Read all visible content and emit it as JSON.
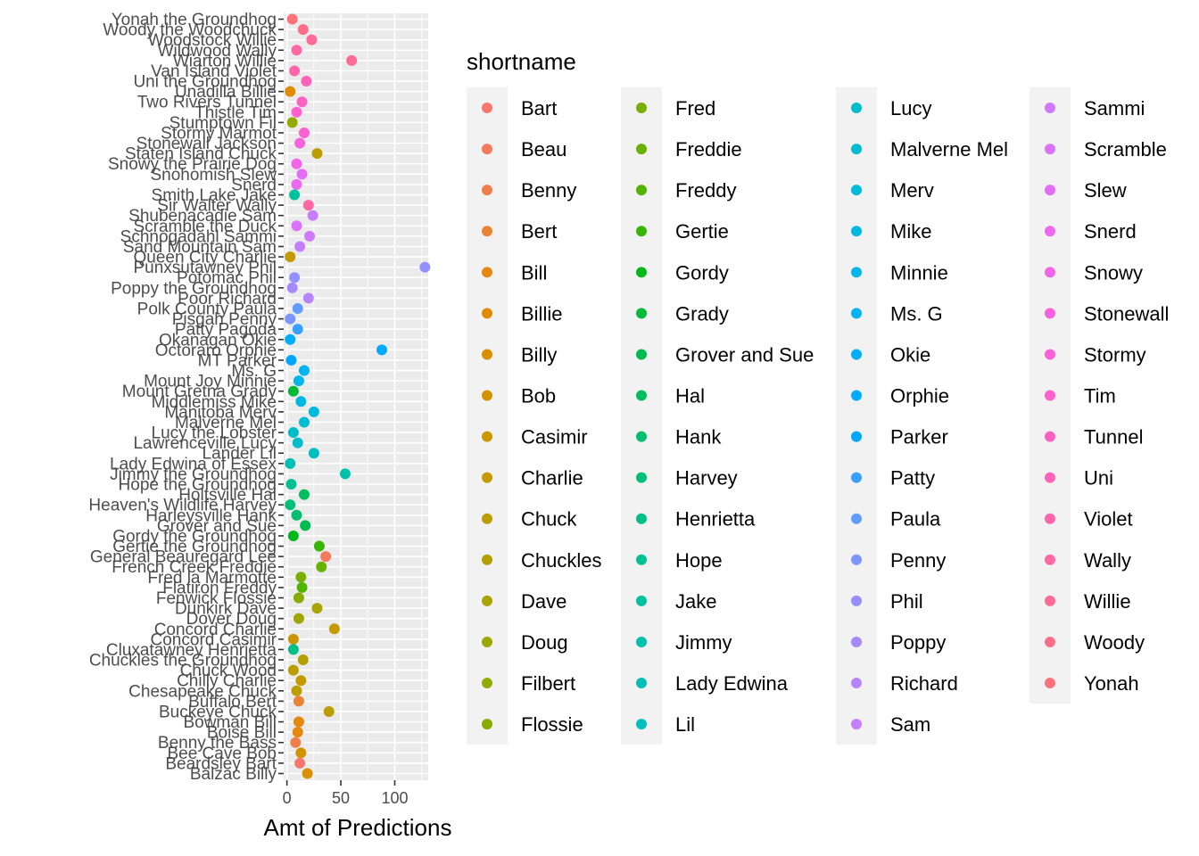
{
  "chart_data": {
    "type": "scatter",
    "xlabel": "Amt of Predictions",
    "ylabel": "",
    "xlim": [
      -3,
      131
    ],
    "x_ticks": [
      0,
      50,
      100
    ],
    "grid": true,
    "legend": {
      "title": "shortname",
      "position": "right",
      "columns": [
        [
          "Bart",
          "Beau",
          "Benny",
          "Bert",
          "Bill",
          "Billie",
          "Billy",
          "Bob",
          "Casimir",
          "Charlie",
          "Chuck",
          "Chuckles",
          "Dave",
          "Doug",
          "Filbert",
          "Flossie"
        ],
        [
          "Fred",
          "Freddie",
          "Freddy",
          "Gertie",
          "Gordy",
          "Grady",
          "Grover and Sue",
          "Hal",
          "Hank",
          "Harvey",
          "Henrietta",
          "Hope",
          "Jake",
          "Jimmy",
          "Lady Edwina",
          "Lil"
        ],
        [
          "Lucy",
          "Malverne Mel",
          "Merv",
          "Mike",
          "Minnie",
          "Ms. G",
          "Okie",
          "Orphie",
          "Parker",
          "Patty",
          "Paula",
          "Penny",
          "Phil",
          "Poppy",
          "Richard",
          "Sam"
        ],
        [
          "Sammi",
          "Scramble",
          "Slew",
          "Snerd",
          "Snowy",
          "Stonewall",
          "Stormy",
          "Tim",
          "Tunnel",
          "Uni",
          "Violet",
          "Wally",
          "Willie",
          "Woody",
          "Yonah"
        ]
      ]
    },
    "points": [
      {
        "name": "Yonah the Groundhog",
        "short": "Yonah",
        "value": 5
      },
      {
        "name": "Woody the Woodchuck",
        "short": "Woody",
        "value": 15
      },
      {
        "name": "Woodstock Willie",
        "short": "Willie",
        "value": 23
      },
      {
        "name": "Wildwood Wally",
        "short": "Wally",
        "value": 9
      },
      {
        "name": "Wiarton Willie",
        "short": "Willie",
        "value": 60
      },
      {
        "name": "Van Island Violet",
        "short": "Violet",
        "value": 7
      },
      {
        "name": "Uni the Groundhog",
        "short": "Uni",
        "value": 18
      },
      {
        "name": "Unadilla Billie",
        "short": "Billie",
        "value": 3
      },
      {
        "name": "Two Rivers Tunnel",
        "short": "Tunnel",
        "value": 14
      },
      {
        "name": "Thistle Tim",
        "short": "Tim",
        "value": 9
      },
      {
        "name": "Stumptown Fil",
        "short": "Filbert",
        "value": 5
      },
      {
        "name": "Stormy Marmot",
        "short": "Stormy",
        "value": 16
      },
      {
        "name": "Stonewall Jackson",
        "short": "Stonewall",
        "value": 12
      },
      {
        "name": "Staten Island Chuck",
        "short": "Chuck",
        "value": 28
      },
      {
        "name": "Snowy the Prairie Dog",
        "short": "Snowy",
        "value": 9
      },
      {
        "name": "Snohomish Slew",
        "short": "Slew",
        "value": 14
      },
      {
        "name": "Snerd",
        "short": "Snerd",
        "value": 9
      },
      {
        "name": "Smith Lake Jake",
        "short": "Jake",
        "value": 7
      },
      {
        "name": "Sir Walter Wally",
        "short": "Wally",
        "value": 20
      },
      {
        "name": "Shubenacadie Sam",
        "short": "Sam",
        "value": 24
      },
      {
        "name": "Scramble the Duck",
        "short": "Scramble",
        "value": 9
      },
      {
        "name": "Schnogadahl Sammi",
        "short": "Sammi",
        "value": 21
      },
      {
        "name": "Sand Mountain Sam",
        "short": "Sam",
        "value": 12
      },
      {
        "name": "Queen City Charlie",
        "short": "Charlie",
        "value": 3
      },
      {
        "name": "Punxsutawney Phil",
        "short": "Phil",
        "value": 128
      },
      {
        "name": "Potomac Phil",
        "short": "Phil",
        "value": 7
      },
      {
        "name": "Poppy the Groundhog",
        "short": "Poppy",
        "value": 5
      },
      {
        "name": "Poor Richard",
        "short": "Richard",
        "value": 20
      },
      {
        "name": "Polk County Paula",
        "short": "Paula",
        "value": 10
      },
      {
        "name": "Pisgah Penny",
        "short": "Penny",
        "value": 3
      },
      {
        "name": "Patty Pagoda",
        "short": "Patty",
        "value": 10
      },
      {
        "name": "Okanagan Okie",
        "short": "Okie",
        "value": 3
      },
      {
        "name": "Octoraro Orphie",
        "short": "Orphie",
        "value": 88
      },
      {
        "name": "MT Parker",
        "short": "Parker",
        "value": 4
      },
      {
        "name": "Ms. G",
        "short": "Ms. G",
        "value": 16
      },
      {
        "name": "Mount Joy Minnie",
        "short": "Minnie",
        "value": 11
      },
      {
        "name": "Mount Gretna Grady",
        "short": "Grady",
        "value": 6
      },
      {
        "name": "Middlemiss Mike",
        "short": "Mike",
        "value": 13
      },
      {
        "name": "Manitoba Merv",
        "short": "Merv",
        "value": 25
      },
      {
        "name": "Malverne Mel",
        "short": "Malverne Mel",
        "value": 16
      },
      {
        "name": "Lucy the Lobster",
        "short": "Lucy",
        "value": 6
      },
      {
        "name": "Lawrenceville Lucy",
        "short": "Lucy",
        "value": 10
      },
      {
        "name": "Lander Lil",
        "short": "Lil",
        "value": 25
      },
      {
        "name": "Lady Edwina of Essex",
        "short": "Lady Edwina",
        "value": 3
      },
      {
        "name": "Jimmy the Groundhog",
        "short": "Jimmy",
        "value": 54
      },
      {
        "name": "Hope the Groundhog",
        "short": "Hope",
        "value": 4
      },
      {
        "name": "Holtsville Hal",
        "short": "Hal",
        "value": 16
      },
      {
        "name": "Heaven's Wildlife Harvey",
        "short": "Harvey",
        "value": 3
      },
      {
        "name": "Harleysville Hank",
        "short": "Hank",
        "value": 9
      },
      {
        "name": "Grover and Sue",
        "short": "Grover and Sue",
        "value": 17
      },
      {
        "name": "Gordy the Groundhog",
        "short": "Gordy",
        "value": 6
      },
      {
        "name": "Gertie the Groundhog",
        "short": "Gertie",
        "value": 30
      },
      {
        "name": "General Beauregard Lee",
        "short": "Beau",
        "value": 36
      },
      {
        "name": "French Creek Freddie",
        "short": "Freddie",
        "value": 32
      },
      {
        "name": "Fred la Marmotte",
        "short": "Fred",
        "value": 13
      },
      {
        "name": "Flatiron Freddy",
        "short": "Freddy",
        "value": 14
      },
      {
        "name": "Fenwick Flossie",
        "short": "Flossie",
        "value": 11
      },
      {
        "name": "Dunkirk Dave",
        "short": "Dave",
        "value": 28
      },
      {
        "name": "Dover Doug",
        "short": "Doug",
        "value": 11
      },
      {
        "name": "Concord Charlie",
        "short": "Charlie",
        "value": 44
      },
      {
        "name": "Concord Casimir",
        "short": "Casimir",
        "value": 6
      },
      {
        "name": "Cluxatawney Henrietta",
        "short": "Henrietta",
        "value": 6
      },
      {
        "name": "Chuckles the Groundhog",
        "short": "Chuckles",
        "value": 15
      },
      {
        "name": "Chuck Wood",
        "short": "Chuck",
        "value": 6
      },
      {
        "name": "Chilly Charlie",
        "short": "Charlie",
        "value": 13
      },
      {
        "name": "Chesapeake Chuck",
        "short": "Chuck",
        "value": 9
      },
      {
        "name": "Buffalo Bert",
        "short": "Bert",
        "value": 11
      },
      {
        "name": "Buckeye Chuck",
        "short": "Chuck",
        "value": 39
      },
      {
        "name": "Bowman Bill",
        "short": "Bill",
        "value": 11
      },
      {
        "name": "Boise Bill",
        "short": "Bill",
        "value": 10
      },
      {
        "name": "Benny the Bass",
        "short": "Benny",
        "value": 8
      },
      {
        "name": "Bee Cave Bob",
        "short": "Bob",
        "value": 13
      },
      {
        "name": "Beardsley Bart",
        "short": "Bart",
        "value": 12
      },
      {
        "name": "Balzac Billy",
        "short": "Billy",
        "value": 19
      }
    ]
  }
}
